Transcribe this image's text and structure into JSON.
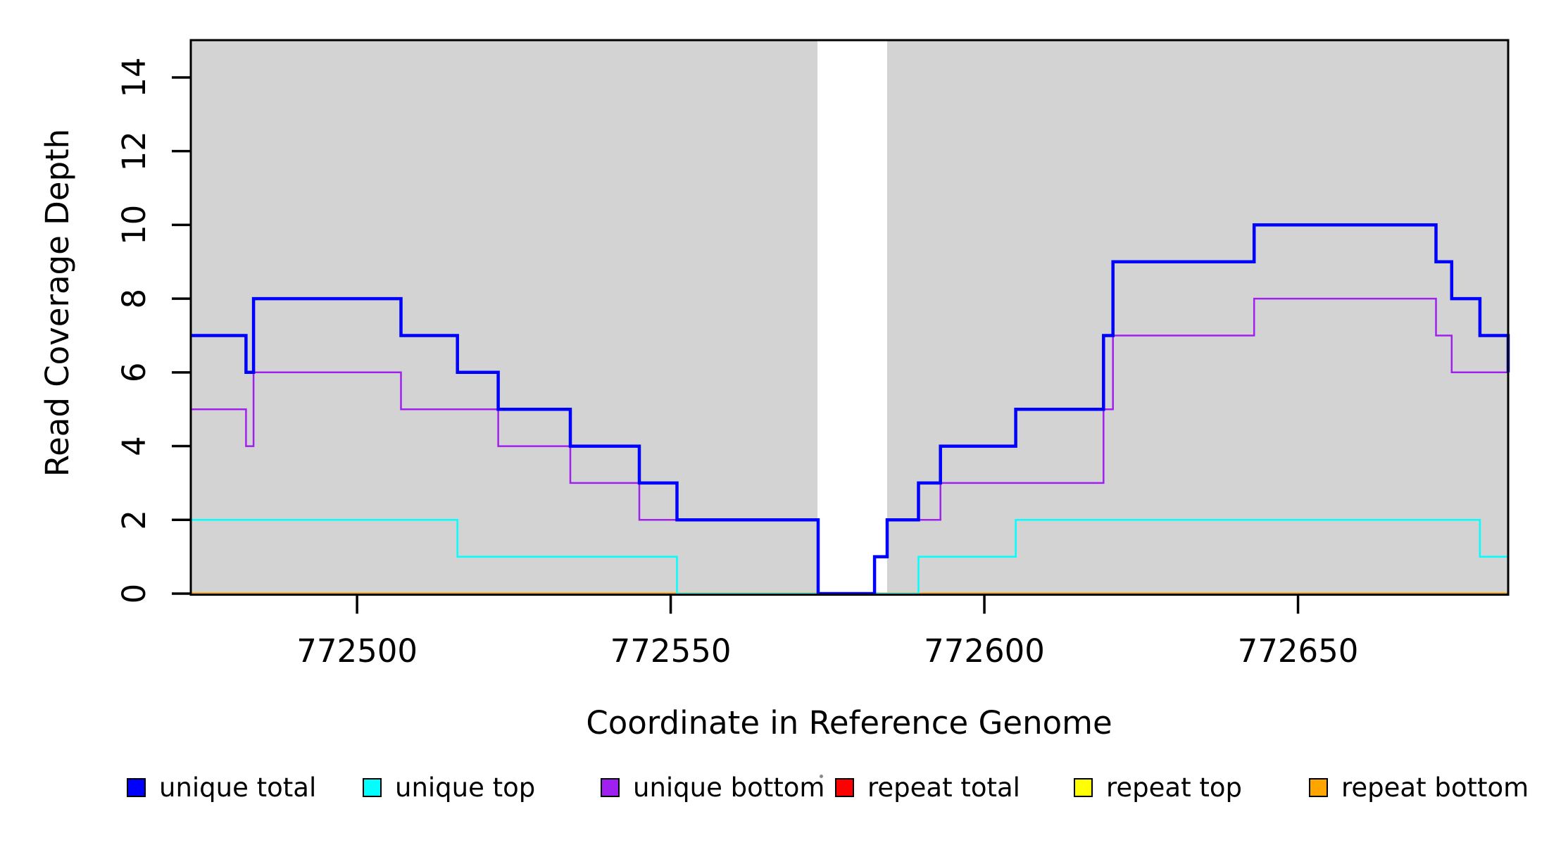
{
  "chart_data": {
    "type": "line",
    "subtype": "step-after",
    "title": "",
    "xlabel": "Coordinate in Reference Genome",
    "ylabel": "Read Coverage Depth",
    "xlim": [
      772473.5,
      772683.5
    ],
    "ylim": [
      0,
      15.05
    ],
    "x_ticks": [
      772500,
      772550,
      772600,
      772650
    ],
    "y_ticks": [
      0,
      2,
      4,
      6,
      8,
      10,
      12,
      14
    ],
    "grid": false,
    "legend_position": "bottom",
    "plot_background": "#ffffff",
    "shaded_regions": [
      {
        "x0": 772473.5,
        "x1": 772573.4,
        "color": "#d3d3d3"
      },
      {
        "x0": 772584.5,
        "x1": 772683.5,
        "color": "#d3d3d3"
      }
    ],
    "series": [
      {
        "name": "repeat total",
        "color": "#ff0000",
        "width": 3,
        "points": [
          [
            772473.5,
            0
          ]
        ]
      },
      {
        "name": "repeat top",
        "color": "#ffff00",
        "width": 3,
        "points": [
          [
            772473.5,
            0
          ]
        ]
      },
      {
        "name": "repeat bottom",
        "color": "#ffa500",
        "width": 3.5,
        "points": [
          [
            772473.5,
            0
          ]
        ]
      },
      {
        "name": "unique top",
        "color": "#00ffff",
        "width": 2.5,
        "points": [
          [
            772473.5,
            2
          ],
          [
            772516,
            1
          ],
          [
            772551,
            0
          ],
          [
            772589.5,
            1
          ],
          [
            772605,
            2
          ],
          [
            772679,
            1
          ]
        ]
      },
      {
        "name": "unique bottom",
        "color": "#a020f0",
        "width": 2.5,
        "points": [
          [
            772473.5,
            5
          ],
          [
            772482.3,
            4
          ],
          [
            772483.5,
            6
          ],
          [
            772507,
            5
          ],
          [
            772522.5,
            4
          ],
          [
            772534,
            3
          ],
          [
            772545,
            2
          ],
          [
            772573.5,
            0
          ],
          [
            772582.5,
            1
          ],
          [
            772584.5,
            2
          ],
          [
            772593,
            3
          ],
          [
            772619,
            5
          ],
          [
            772620.5,
            7
          ],
          [
            772643,
            8
          ],
          [
            772672,
            7
          ],
          [
            772674.5,
            6
          ],
          [
            772683.5,
            5
          ]
        ]
      },
      {
        "name": "unique total",
        "color": "#0000ff",
        "width": 4.5,
        "points": [
          [
            772473.5,
            7
          ],
          [
            772482.3,
            6
          ],
          [
            772483.5,
            8
          ],
          [
            772507,
            7
          ],
          [
            772516,
            6
          ],
          [
            772522.5,
            5
          ],
          [
            772534,
            4
          ],
          [
            772545,
            3
          ],
          [
            772551,
            2
          ],
          [
            772573.5,
            0
          ],
          [
            772582.5,
            1
          ],
          [
            772584.5,
            2
          ],
          [
            772589.5,
            3
          ],
          [
            772593,
            4
          ],
          [
            772605,
            5
          ],
          [
            772619,
            7
          ],
          [
            772620.5,
            9
          ],
          [
            772643,
            10
          ],
          [
            772672,
            9
          ],
          [
            772674.5,
            8
          ],
          [
            772679,
            7
          ],
          [
            772683.5,
            6
          ]
        ]
      }
    ]
  },
  "legend": {
    "items": [
      {
        "label": "unique total",
        "color": "#0000ff"
      },
      {
        "label": "unique top",
        "color": "#00ffff"
      },
      {
        "label": "unique bottom",
        "color": "#a020f0"
      },
      {
        "label": "repeat total",
        "color": "#ff0000"
      },
      {
        "label": "repeat top",
        "color": "#ffff00"
      },
      {
        "label": "repeat bottom",
        "color": "#ffa500"
      }
    ]
  },
  "axis": {
    "x_label": "Coordinate in Reference Genome",
    "y_label": "Read Coverage Depth"
  }
}
